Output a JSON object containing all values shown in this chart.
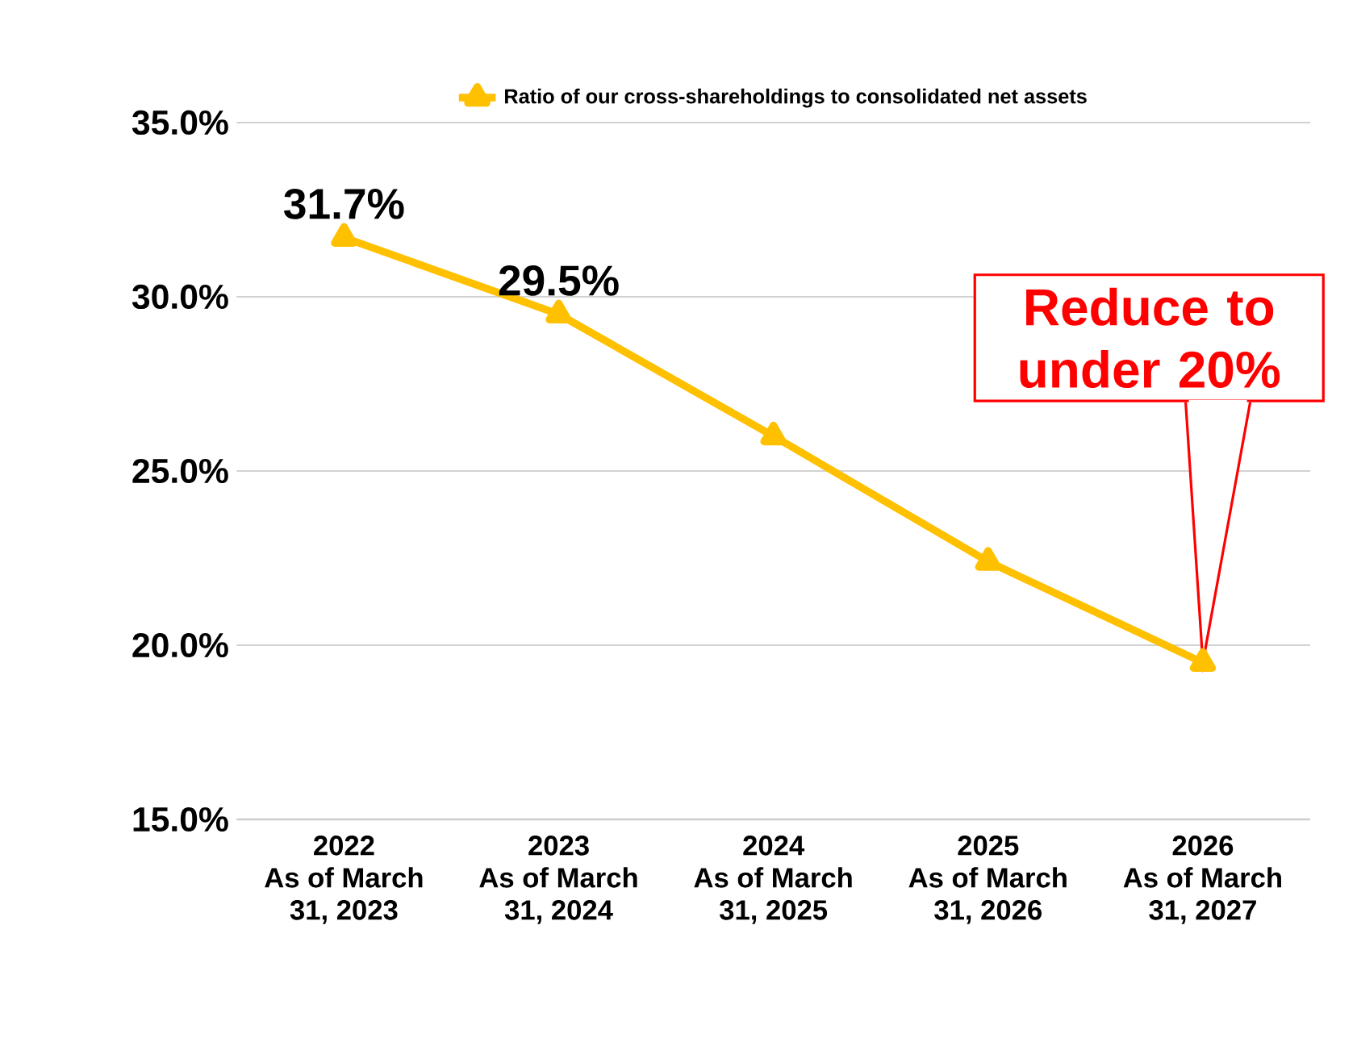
{
  "chart_data": {
    "type": "line",
    "categories": [
      "2022\nAs of March\n31, 2023",
      "2023\nAs of March\n31, 2024",
      "2024\nAs of March\n31, 2025",
      "2025\nAs of March\n31, 2026",
      "2026\nAs of March\n31, 2027"
    ],
    "series": [
      {
        "name": "Ratio of our cross-shareholdings to consolidated net assets",
        "color": "#ffc000",
        "values": [
          31.7,
          29.5,
          26.0,
          22.4,
          19.5
        ],
        "value_labels": [
          "31.7%",
          "29.5%",
          null,
          null,
          null
        ]
      }
    ],
    "ylim": [
      15,
      35
    ],
    "yticks": [
      {
        "value": 15,
        "label": "15.0%"
      },
      {
        "value": 20,
        "label": "20.0%"
      },
      {
        "value": 25,
        "label": "25.0%"
      },
      {
        "value": 30,
        "label": "30.0%"
      },
      {
        "value": 35,
        "label": "35.0%"
      }
    ],
    "grid": "y",
    "legend": "top",
    "marker": "triangle",
    "line_style": "solid",
    "annotations": [
      {
        "text": "Reduce to under 20%",
        "x": "2026\nAs of March\n31, 2027",
        "y": 19.5
      }
    ]
  }
}
